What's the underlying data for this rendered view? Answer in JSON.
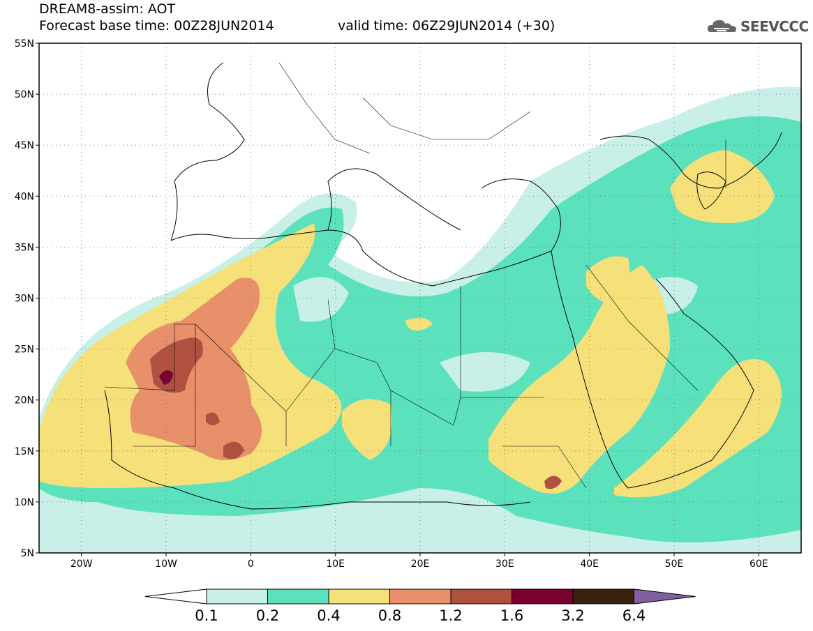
{
  "header": {
    "title": "DREAM8-assim: AOT",
    "base_time": "Forecast base time: 00Z28JUN2014",
    "valid_time": "valid time: 06Z29JUN2014 (+30)",
    "logo_text": "SEEVCCC"
  },
  "map": {
    "lat_labels": [
      "55N",
      "50N",
      "45N",
      "40N",
      "35N",
      "30N",
      "25N",
      "20N",
      "15N",
      "10N",
      "5N"
    ],
    "lon_labels": [
      "20W",
      "10W",
      "0",
      "10E",
      "20E",
      "30E",
      "40E",
      "50E",
      "60E"
    ],
    "lon_range": [
      -25,
      65
    ],
    "lat_range": [
      5,
      55
    ]
  },
  "legend": {
    "labels": [
      "0.1",
      "0.2",
      "0.4",
      "0.8",
      "1.2",
      "1.6",
      "3.2",
      "6.4"
    ],
    "colors": [
      "#ffffff",
      "#c8f0e8",
      "#5ce1bd",
      "#f5e07a",
      "#e8906a",
      "#b05040",
      "#7a0030",
      "#3a2010",
      "#8060a0"
    ]
  },
  "colors": {
    "c1": "#c8f0e8",
    "c2": "#5ce1bd",
    "c3": "#f5e07a",
    "c4": "#e8906a",
    "c5": "#b05040",
    "c6": "#7a0030"
  }
}
